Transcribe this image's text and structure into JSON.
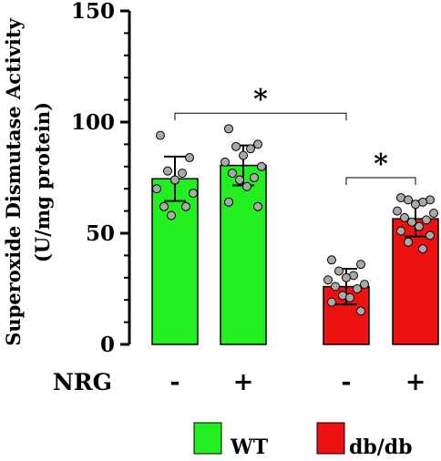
{
  "chart_data": {
    "type": "bar",
    "ylabel_line1": "Superoxide Dismutase Activity",
    "ylabel_line2": "(U/mg protein)",
    "ylim": [
      0,
      150
    ],
    "yticks": [
      "0",
      "50",
      "100",
      "150"
    ],
    "row_label": "NRG",
    "categories": [
      "-",
      "+",
      "-",
      "+"
    ],
    "values": [
      74.5,
      80.5,
      26,
      56.5
    ],
    "errors": [
      10,
      9,
      8,
      8
    ],
    "bar_colors": [
      "#22ee22",
      "#22ee22",
      "#ee1111",
      "#ee1111"
    ],
    "points": [
      [
        94,
        84,
        78,
        77,
        74,
        70,
        68,
        62,
        62,
        58
      ],
      [
        97,
        90,
        89,
        88,
        85,
        82,
        80,
        77,
        75,
        74,
        71,
        64,
        62
      ],
      [
        38,
        36,
        33,
        31,
        30,
        29,
        27,
        26,
        25,
        22,
        21,
        19,
        15
      ],
      [
        66,
        65,
        65,
        64,
        63,
        60,
        59,
        57,
        56,
        55,
        53,
        51,
        49,
        46,
        43
      ]
    ],
    "significance": [
      {
        "label": "*",
        "from": 0,
        "to": 2,
        "y": 104
      },
      {
        "label": "*",
        "from": 2,
        "to": 3,
        "y": 75
      }
    ],
    "legend": [
      {
        "label": "WT",
        "color": "#22ee22"
      },
      {
        "label": "db/db",
        "color": "#ee1111"
      }
    ],
    "grid": false,
    "legend_position": "bottom"
  }
}
